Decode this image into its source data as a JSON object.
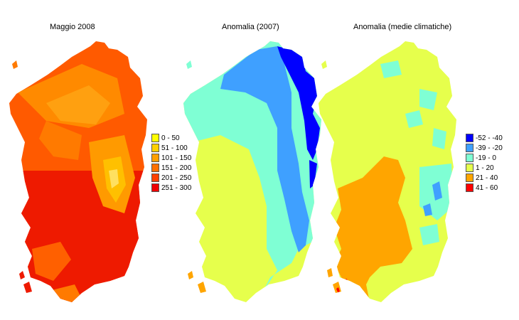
{
  "maps": {
    "map1": {
      "title": "Maggio 2008"
    },
    "map2": {
      "title": "Anomalia (2007)"
    },
    "map3": {
      "title": "Anomalia (medie climatiche)"
    }
  },
  "legend1": {
    "items": [
      {
        "label": "0 - 50",
        "color": "#ffff00"
      },
      {
        "label": "51 - 100",
        "color": "#ffd000"
      },
      {
        "label": "101 - 150",
        "color": "#ff9f00"
      },
      {
        "label": "151 - 200",
        "color": "#ff7000"
      },
      {
        "label": "201 - 250",
        "color": "#ff4000"
      },
      {
        "label": "251 - 300",
        "color": "#ee0000"
      }
    ]
  },
  "legend2": {
    "items": [
      {
        "label": "-52 - -40",
        "color": "#0000ff"
      },
      {
        "label": "-39 - -20",
        "color": "#3fa0ff"
      },
      {
        "label": "-19 - 0",
        "color": "#7fffd4"
      },
      {
        "label": "1 - 20",
        "color": "#e6ff4c"
      },
      {
        "label": "21 - 40",
        "color": "#ffa500"
      },
      {
        "label": "41 - 60",
        "color": "#ff0000"
      }
    ]
  }
}
